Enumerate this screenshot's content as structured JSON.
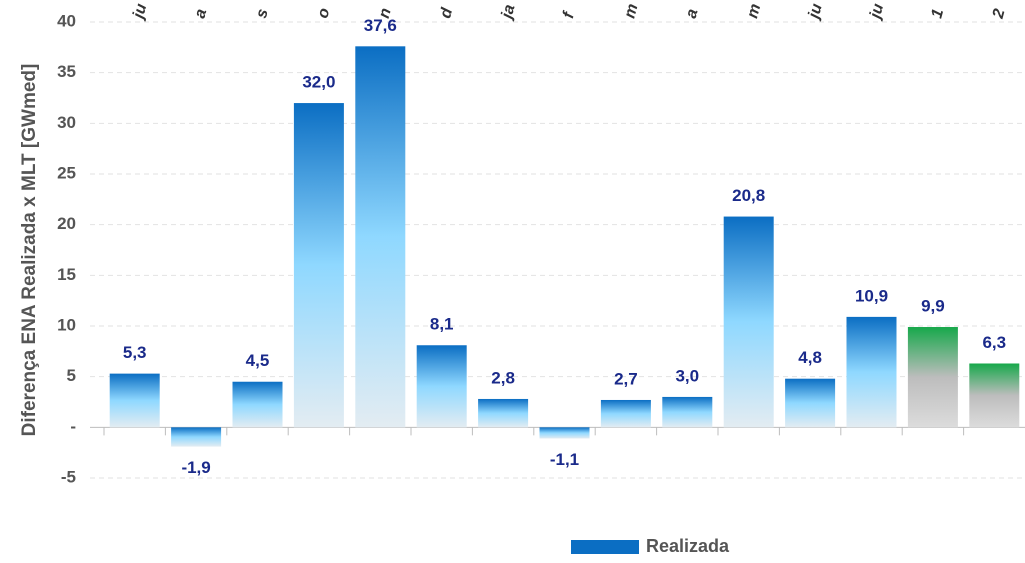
{
  "chart_data": {
    "type": "bar",
    "y_label": "Diferença ENA Realizada x MLT [GWmed]",
    "categories": [
      "ju",
      "a",
      "s",
      "o",
      "n",
      "d",
      "ja",
      "f",
      "m",
      "a",
      "m",
      "ju",
      "ju",
      "1",
      "2"
    ],
    "series": [
      {
        "name": "Realizada",
        "color": "#0b6ec3",
        "values": [
          5.3,
          -1.9,
          4.5,
          32.0,
          37.6,
          8.1,
          2.8,
          -1.1,
          2.7,
          3.0,
          20.8,
          4.8,
          10.9,
          9.9,
          6.3
        ],
        "value_labels": [
          "5,3",
          "-1,9",
          "4,5",
          "32,0",
          "37,6",
          "8,1",
          "2,8",
          "-1,1",
          "2,7",
          "3,0",
          "20,8",
          "4,8",
          "10,9",
          "9,9",
          "6,3"
        ],
        "bar_colors": [
          "#0b6ec3",
          "#0b6ec3",
          "#0b6ec3",
          "#0b6ec3",
          "#0b6ec3",
          "#0b6ec3",
          "#0b6ec3",
          "#0b6ec3",
          "#0b6ec3",
          "#0b6ec3",
          "#0b6ec3",
          "#0b6ec3",
          "#0b6ec3",
          "#17a84b",
          "#17a84b"
        ]
      }
    ],
    "ylim": [
      -5,
      40
    ],
    "yticks": [
      -5,
      {
        "value": 0,
        "label": "-"
      },
      5,
      10,
      15,
      20,
      25,
      30,
      35,
      40
    ],
    "grid": true,
    "legend": "bottom"
  }
}
